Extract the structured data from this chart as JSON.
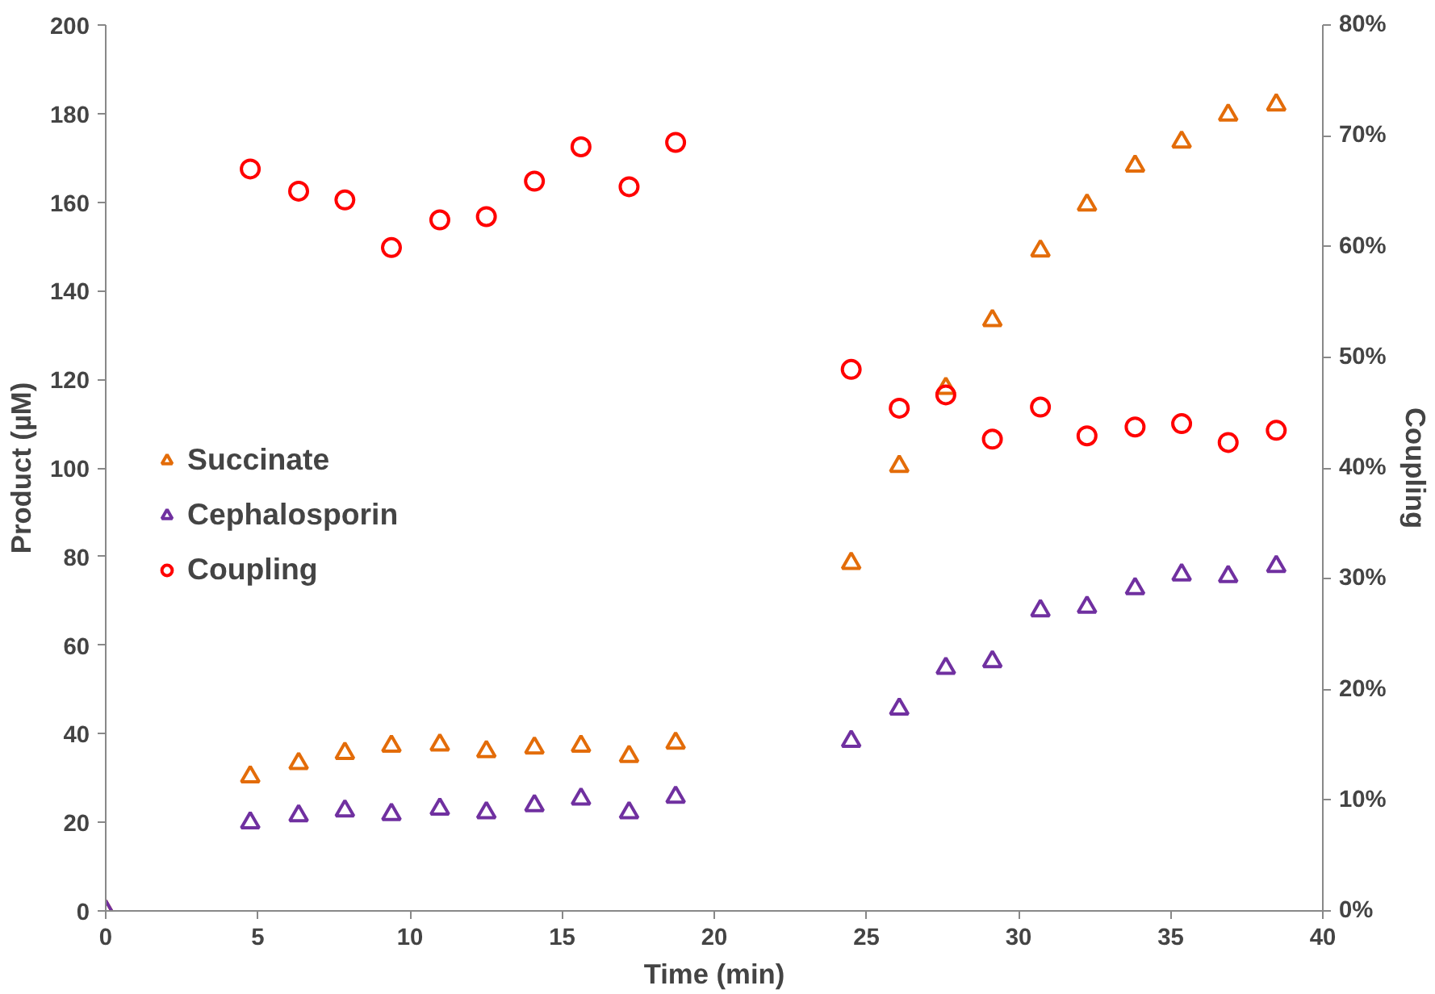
{
  "chart_data": {
    "type": "scatter",
    "xlabel": "Time (min)",
    "ylabel": "Product (µM)",
    "y2label": "Coupling",
    "xlim": [
      0,
      40
    ],
    "xticks": [
      0,
      5,
      10,
      15,
      20,
      25,
      30,
      35,
      40
    ],
    "ylim": [
      0,
      200
    ],
    "yticks": [
      0,
      20,
      40,
      60,
      80,
      100,
      120,
      140,
      160,
      180,
      200
    ],
    "y2lim": [
      0,
      80
    ],
    "y2ticks": [
      {
        "value": 0,
        "label": "0%"
      },
      {
        "value": 10,
        "label": "10%"
      },
      {
        "value": 20,
        "label": "20%"
      },
      {
        "value": 30,
        "label": "30%"
      },
      {
        "value": 40,
        "label": "40%"
      },
      {
        "value": 50,
        "label": "50%"
      },
      {
        "value": 60,
        "label": "60%"
      },
      {
        "value": 70,
        "label": "70%"
      },
      {
        "value": 80,
        "label": "80%"
      }
    ],
    "grid": false,
    "legend": "left",
    "series": [
      {
        "name": "Succinate",
        "color": "#e36c09",
        "marker": "triangle",
        "x": [
          0,
          4.75,
          6.34,
          7.86,
          9.39,
          10.98,
          12.51,
          14.09,
          15.62,
          17.2,
          18.73,
          24.5,
          26.08,
          27.61,
          29.14,
          30.72,
          32.25,
          33.83,
          35.36,
          36.89,
          38.47
        ],
        "values": [
          0,
          30.3,
          33.3,
          35.6,
          37.2,
          37.5,
          36,
          36.8,
          37.2,
          34.9,
          37.9,
          78.5,
          100.4,
          118,
          133.3,
          149,
          159.4,
          168.2,
          173.6,
          179.7,
          182
        ]
      },
      {
        "name": "Cephalosporin",
        "color": "#7030a0",
        "marker": "triangle",
        "x": [
          0,
          4.75,
          6.34,
          7.86,
          9.39,
          10.98,
          12.51,
          14.09,
          15.62,
          17.2,
          18.73,
          24.5,
          26.08,
          27.61,
          29.14,
          30.72,
          32.25,
          33.83,
          35.36,
          36.89,
          38.47
        ],
        "values": [
          0,
          19.9,
          21.5,
          22.6,
          21.8,
          23,
          22.2,
          23.8,
          25.3,
          22.2,
          25.7,
          38.3,
          45.6,
          54.8,
          56.3,
          67.8,
          68.6,
          72.8,
          75.9,
          75.5,
          77.8
        ]
      },
      {
        "name": "Coupling",
        "color": "#ff0000",
        "marker": "circle",
        "axis": "y2",
        "x": [
          4.75,
          6.34,
          7.86,
          9.39,
          10.98,
          12.51,
          14.09,
          15.62,
          17.2,
          18.73,
          24.5,
          26.08,
          27.61,
          29.14,
          30.72,
          32.25,
          33.83,
          35.36,
          36.89,
          38.47
        ],
        "values": [
          67,
          65,
          64.2,
          59.9,
          62.4,
          62.7,
          65.9,
          69,
          65.4,
          69.4,
          48.9,
          45.4,
          46.6,
          42.6,
          45.5,
          42.9,
          43.7,
          44,
          42.3,
          43.4
        ]
      }
    ]
  }
}
